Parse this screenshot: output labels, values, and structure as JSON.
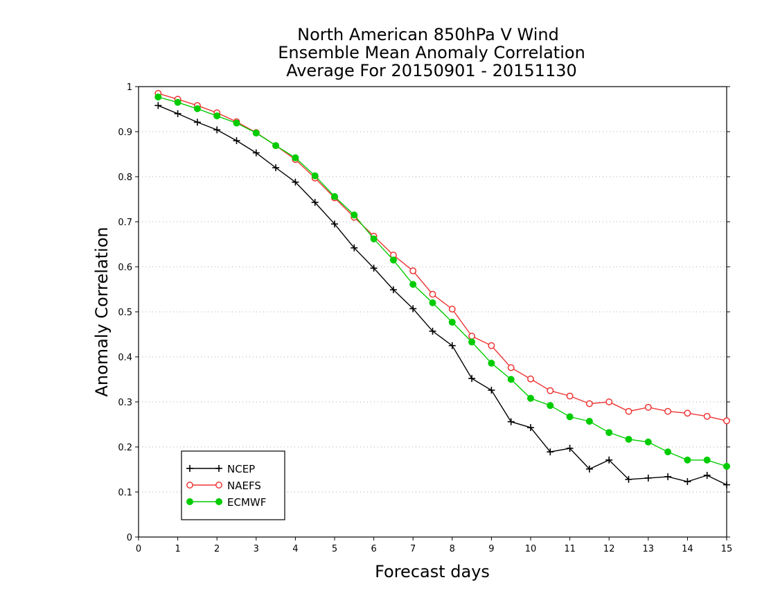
{
  "chart_data": {
    "type": "line",
    "title_lines": [
      "North American 850hPa V Wind",
      "Ensemble Mean Anomaly Correlation",
      "Average For 20150901 - 20151130"
    ],
    "xlabel": "Forecast days",
    "ylabel": "Anomaly Correlation",
    "xlim": [
      0,
      15
    ],
    "ylim": [
      0,
      1
    ],
    "x_ticks": [
      "0",
      "1",
      "2",
      "3",
      "4",
      "5",
      "6",
      "7",
      "8",
      "9",
      "10",
      "11",
      "12",
      "13",
      "14",
      "15"
    ],
    "y_ticks": [
      "0",
      "0.1",
      "0.2",
      "0.3",
      "0.4",
      "0.5",
      "0.6",
      "0.7",
      "0.8",
      "0.9",
      "1"
    ],
    "grid": "horizontal dotted",
    "legend_position": "bottom-left",
    "x": [
      0.5,
      1,
      1.5,
      2,
      2.5,
      3,
      3.5,
      4,
      4.5,
      5,
      5.5,
      6,
      6.5,
      7,
      7.5,
      8,
      8.5,
      9,
      9.5,
      10,
      10.5,
      11,
      11.5,
      12,
      12.5,
      13,
      13.5,
      14,
      14.5,
      15
    ],
    "series": [
      {
        "name": "NCEP",
        "color": "#000000",
        "marker": "plus",
        "values": [
          0.958,
          0.94,
          0.921,
          0.904,
          0.88,
          0.853,
          0.82,
          0.788,
          0.743,
          0.695,
          0.642,
          0.597,
          0.549,
          0.507,
          0.457,
          0.425,
          0.352,
          0.326,
          0.256,
          0.243,
          0.189,
          0.197,
          0.151,
          0.171,
          0.128,
          0.131,
          0.134,
          0.123,
          0.137,
          0.116
        ]
      },
      {
        "name": "NAEFS",
        "color": "#ee3333",
        "marker": "open-circle",
        "values": [
          0.985,
          0.972,
          0.958,
          0.942,
          0.922,
          0.898,
          0.869,
          0.838,
          0.797,
          0.753,
          0.71,
          0.668,
          0.626,
          0.591,
          0.539,
          0.506,
          0.446,
          0.425,
          0.376,
          0.351,
          0.325,
          0.313,
          0.296,
          0.3,
          0.279,
          0.288,
          0.279,
          0.275,
          0.268,
          0.258
        ]
      },
      {
        "name": "ECMWF",
        "color": "#00cc00",
        "marker": "filled-circle",
        "values": [
          0.977,
          0.965,
          0.951,
          0.935,
          0.919,
          0.897,
          0.869,
          0.842,
          0.802,
          0.756,
          0.715,
          0.662,
          0.615,
          0.561,
          0.52,
          0.477,
          0.433,
          0.386,
          0.35,
          0.308,
          0.292,
          0.267,
          0.257,
          0.232,
          0.217,
          0.211,
          0.189,
          0.171,
          0.171,
          0.157
        ]
      }
    ]
  }
}
